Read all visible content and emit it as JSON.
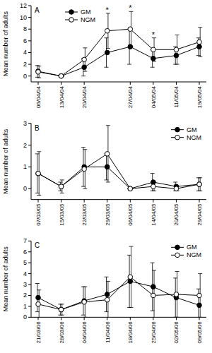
{
  "chart_data": [
    {
      "type": "line",
      "title": "A",
      "y_label": "Mean number of adults",
      "categories": [
        "06/04/04",
        "13/04/04",
        "20/04/04",
        null,
        "27/04/04",
        "04/05/04",
        "11/05/04",
        "19/05/04"
      ],
      "ylim": [
        -1,
        12
      ],
      "yticks": [
        0,
        2,
        4,
        6,
        8,
        10,
        12
      ],
      "legend": "top-left",
      "annotations": [
        {
          "text": "*",
          "index": 3
        },
        {
          "text": "*",
          "index": 4
        },
        {
          "text": "*",
          "index": 5
        }
      ],
      "series": [
        {
          "name": "GM",
          "color": "#000000",
          "marker": "filled-circle",
          "values": [
            0.8,
            0,
            1.5,
            4,
            5,
            3,
            3.5,
            5
          ],
          "errors": [
            1.0,
            0,
            1.5,
            2.5,
            3,
            1.5,
            1.5,
            1.5
          ]
        },
        {
          "name": "NGM",
          "color": "#000000",
          "marker": "open-circle",
          "values": [
            0.7,
            0,
            2.8,
            7.7,
            8,
            4.5,
            4.5,
            5.8
          ],
          "errors": [
            1.0,
            0,
            2,
            3,
            3,
            2,
            2.5,
            2.5
          ]
        }
      ]
    },
    {
      "type": "line",
      "title": "B",
      "y_label": "Mean number of adults",
      "categories": [
        "07/03/05",
        "15/03/05",
        "22/03/05",
        "29/03/05",
        "06/04/05",
        "14/04/05",
        "20/04/05",
        "29/04/05"
      ],
      "ylim": [
        -0.5,
        3
      ],
      "yticks": [
        0,
        1,
        2,
        3
      ],
      "legend": "top-right",
      "series": [
        {
          "name": "GM",
          "color": "#000000",
          "marker": "filled-circle",
          "values": [
            0.7,
            0.1,
            1,
            1,
            0,
            0.3,
            0.1,
            0.2
          ],
          "errors": [
            0.9,
            0.2,
            0.9,
            0.6,
            0,
            0.4,
            0.2,
            0.3
          ]
        },
        {
          "name": "NGM",
          "color": "#000000",
          "marker": "open-circle",
          "values": [
            0.7,
            0.1,
            0.9,
            1.6,
            0,
            0.1,
            0,
            0.2
          ],
          "errors": [
            1.0,
            0.3,
            0.9,
            1.3,
            0,
            0.2,
            0.1,
            0.3
          ]
        }
      ]
    },
    {
      "type": "line",
      "title": "C",
      "y_label": "Mean number of adults",
      "categories": [
        "21/03/06",
        "28/03/06",
        "04/04/06",
        "11/04/06",
        "18/04/06",
        "25/04/06",
        "02/05/06",
        "09/05/06"
      ],
      "ylim": [
        0,
        7
      ],
      "yticks": [
        0,
        1,
        2,
        3,
        4,
        5,
        6,
        7
      ],
      "legend": "top-right",
      "series": [
        {
          "name": "GM",
          "color": "#000000",
          "marker": "filled-circle",
          "values": [
            1.8,
            0.7,
            1.5,
            2.1,
            3.3,
            2.8,
            1.8,
            1.1
          ],
          "errors": [
            1.3,
            0.5,
            1.3,
            1.6,
            2.4,
            2.2,
            1.8,
            1.5
          ]
        },
        {
          "name": "NGM",
          "color": "#000000",
          "marker": "open-circle",
          "values": [
            1.2,
            0.7,
            1.4,
            1.6,
            3.7,
            2.0,
            2.1,
            2.0
          ],
          "errors": [
            1.3,
            0.5,
            1.4,
            1.7,
            2.8,
            2.3,
            2.1,
            2.0
          ]
        }
      ]
    }
  ]
}
